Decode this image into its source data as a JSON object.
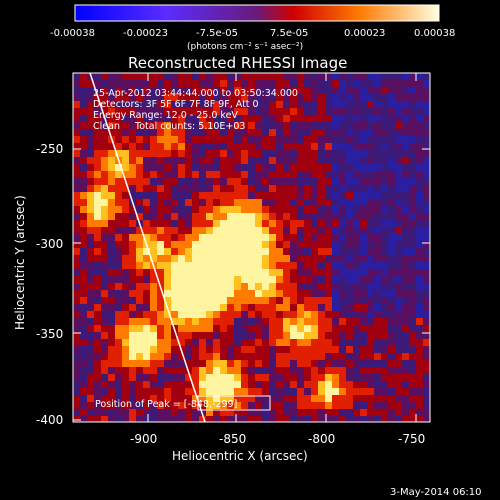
{
  "colorbar": {
    "ticks": [
      "-0.00038",
      "-0.00023",
      "-7.5e-05",
      "7.5e-05",
      "0.00023",
      "0.00038"
    ],
    "units": "(photons cm⁻² s⁻¹ asec⁻²)"
  },
  "title": "Reconstructed RHESSI Image",
  "info": {
    "line1": "25-Apr-2012 03:44:44.000 to 03:50:34.000",
    "line2": "Detectors: 3F 5F 6F 7F 8F 9F, Att 0",
    "line3": "Energy Range: 12.0 - 25.0 keV",
    "line4": "Clean     Total counts: 5.10E+03",
    "peak": "Position of Peak = [-848,-299]"
  },
  "axes": {
    "xlabel": "Heliocentric X (arcsec)",
    "ylabel": "Heliocentric Y (arcsec)",
    "xticks": [
      "-900",
      "-850",
      "-800",
      "-750"
    ],
    "yticks": [
      "-250",
      "-300",
      "-350",
      "-400"
    ]
  },
  "footer": {
    "date": "3-May-2014 06:10"
  },
  "palette": {
    "low": "#3b1a78",
    "mid": "#c01010",
    "high": "#fff4a0"
  }
}
